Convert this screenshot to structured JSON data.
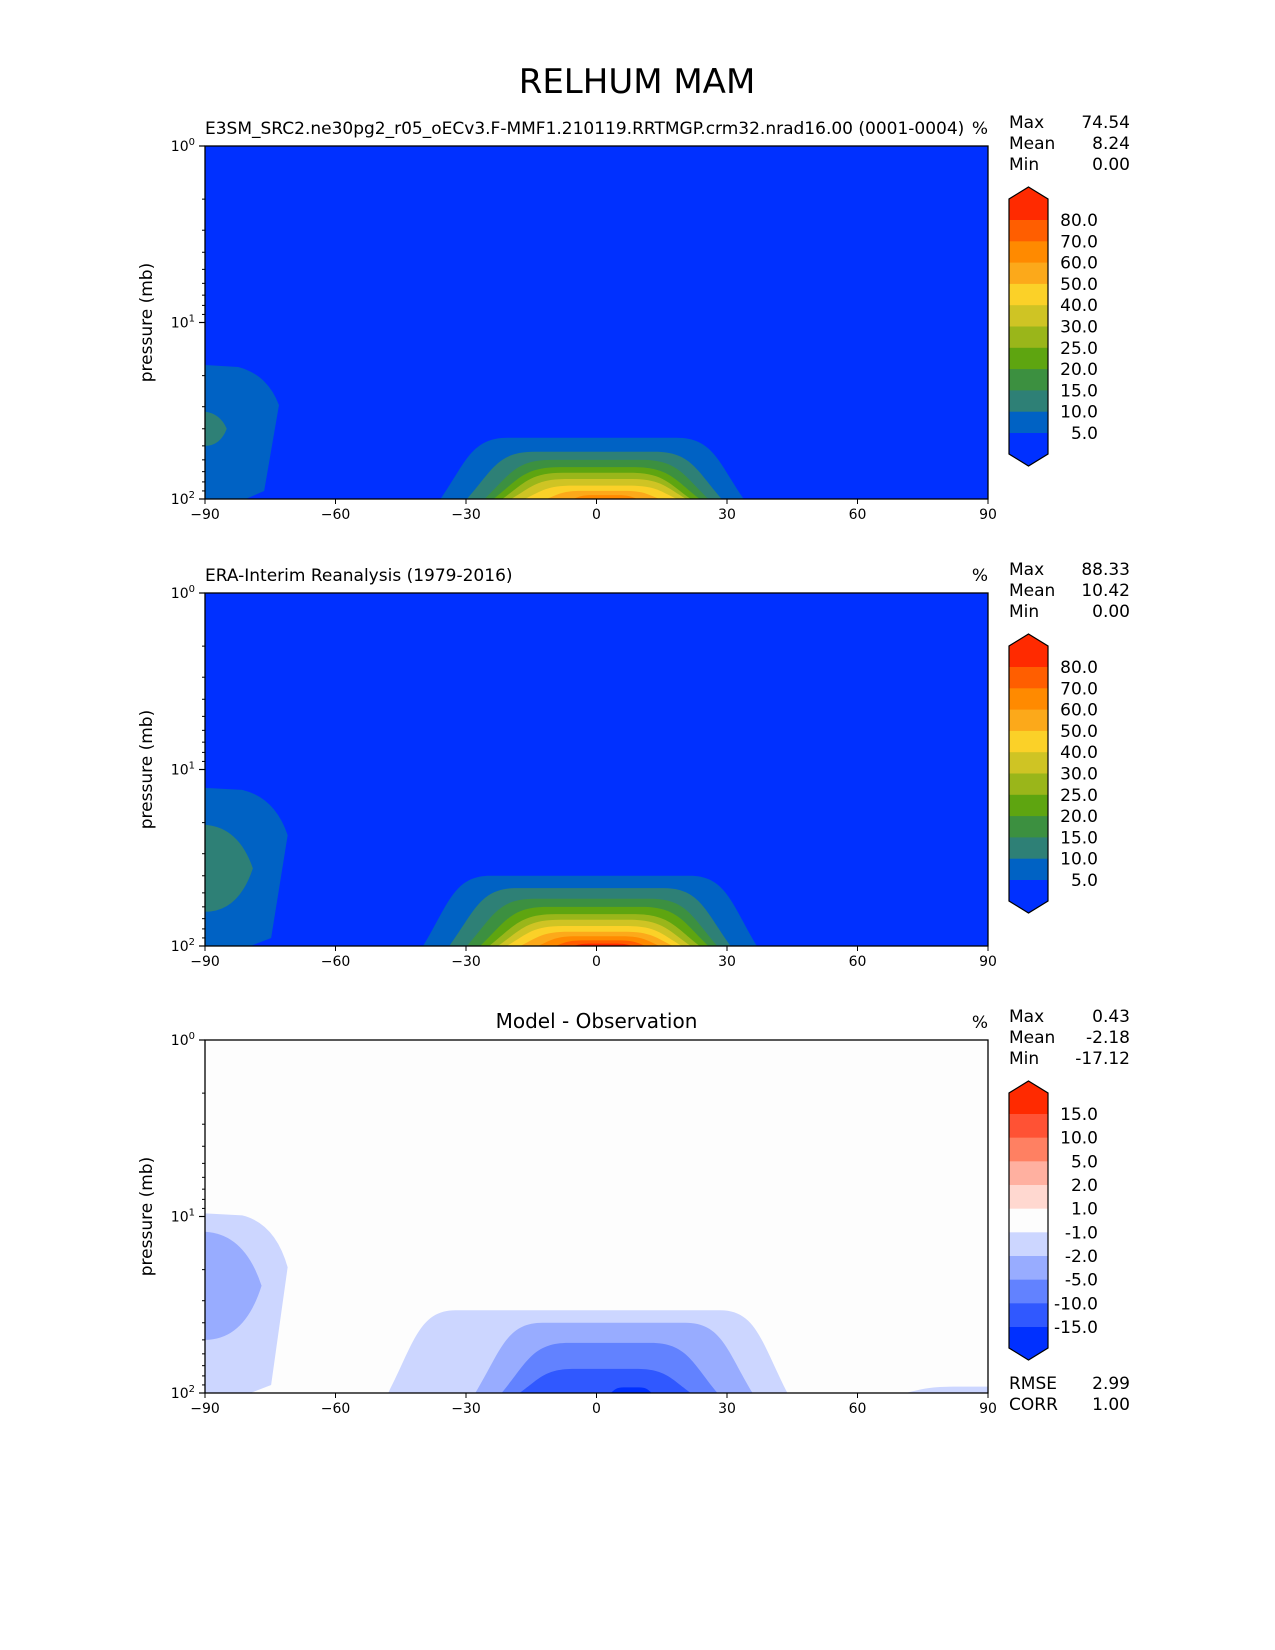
{
  "title": "RELHUM MAM",
  "units": "%",
  "chart_data": [
    {
      "type": "contour",
      "title": "",
      "subtitle": "E3SM_SRC2.ne30pg2_r05_oECv3.F-MMF1.210119.RRTMGP.crm32.nrad16.00 (0001-0004)",
      "units": "%",
      "ylabel": "pressure (mb)",
      "xlim": [
        -90,
        90
      ],
      "ylim": [
        100,
        1
      ],
      "yscale": "log",
      "xticks": [
        "−90",
        "−60",
        "−30",
        "0",
        "30",
        "60",
        "90"
      ],
      "xtick_values": [
        -90,
        -60,
        -30,
        0,
        30,
        60,
        90
      ],
      "yticks": [
        {
          "base": "10",
          "exp": "0",
          "value": 1
        },
        {
          "base": "10",
          "exp": "1",
          "value": 10
        },
        {
          "base": "10",
          "exp": "2",
          "value": 100
        }
      ],
      "stats": [
        {
          "label": "Max",
          "value": "74.54"
        },
        {
          "label": "Mean",
          "value": "8.24"
        },
        {
          "label": "Min",
          "value": "0.00"
        }
      ],
      "levels": [
        5,
        10,
        15,
        20,
        25,
        30,
        40,
        50,
        60,
        70,
        80
      ],
      "level_labels": [
        "5.0",
        "10.0",
        "15.0",
        "20.0",
        "25.0",
        "30.0",
        "40.0",
        "50.0",
        "60.0",
        "70.0",
        "80.0"
      ],
      "colors": [
        "#0030ff",
        "#0062c4",
        "#2e8076",
        "#3c9040",
        "#5ea510",
        "#9ab61a",
        "#cfc424",
        "#fbd128",
        "#fca91a",
        "#ff8a00",
        "#ff5e00",
        "#ff2a00"
      ],
      "regions": [
        {
          "band": 1,
          "lat": [
            -90,
            -73
          ],
          "ptop": 17.4,
          "shape": "polar"
        },
        {
          "band": 2,
          "lat": [
            -90,
            -85
          ],
          "ptop": 32,
          "pbot": 50,
          "shape": "polar-blob"
        },
        {
          "band": 1,
          "lat": [
            -36,
            34
          ],
          "ptop": 45
        },
        {
          "band": 2,
          "lat": [
            -30,
            29
          ],
          "ptop": 54
        },
        {
          "band": 3,
          "lat": [
            -26,
            26
          ],
          "ptop": 60
        },
        {
          "band": 4,
          "lat": [
            -24,
            24
          ],
          "ptop": 66
        },
        {
          "band": 5,
          "lat": [
            -22,
            22
          ],
          "ptop": 71
        },
        {
          "band": 6,
          "lat": [
            -20,
            21
          ],
          "ptop": 77
        },
        {
          "band": 7,
          "lat": [
            -17,
            19
          ],
          "ptop": 84
        },
        {
          "band": 8,
          "lat": [
            -12,
            15
          ],
          "ptop": 90
        },
        {
          "band": 9,
          "lat": [
            -6,
            10
          ],
          "ptop": 95
        }
      ]
    },
    {
      "type": "contour",
      "title": "",
      "subtitle": "ERA-Interim Reanalysis (1979-2016)",
      "units": "%",
      "ylabel": "pressure (mb)",
      "xlim": [
        -90,
        90
      ],
      "ylim": [
        100,
        1
      ],
      "yscale": "log",
      "xticks": [
        "−90",
        "−60",
        "−30",
        "0",
        "30",
        "60",
        "90"
      ],
      "xtick_values": [
        -90,
        -60,
        -30,
        0,
        30,
        60,
        90
      ],
      "yticks": [
        {
          "base": "10",
          "exp": "0",
          "value": 1
        },
        {
          "base": "10",
          "exp": "1",
          "value": 10
        },
        {
          "base": "10",
          "exp": "2",
          "value": 100
        }
      ],
      "stats": [
        {
          "label": "Max",
          "value": "88.33"
        },
        {
          "label": "Mean",
          "value": "10.42"
        },
        {
          "label": "Min",
          "value": "0.00"
        }
      ],
      "levels": [
        5,
        10,
        15,
        20,
        25,
        30,
        40,
        50,
        60,
        70,
        80
      ],
      "level_labels": [
        "5.0",
        "10.0",
        "15.0",
        "20.0",
        "25.0",
        "30.0",
        "40.0",
        "50.0",
        "60.0",
        "70.0",
        "80.0"
      ],
      "colors": [
        "#0030ff",
        "#0062c4",
        "#2e8076",
        "#3c9040",
        "#5ea510",
        "#9ab61a",
        "#cfc424",
        "#fbd128",
        "#fca91a",
        "#ff8a00",
        "#ff5e00",
        "#ff2a00"
      ],
      "regions": [
        {
          "band": 1,
          "lat": [
            -90,
            -71
          ],
          "ptop": 12.7,
          "shape": "polar"
        },
        {
          "band": 2,
          "lat": [
            -90,
            -79
          ],
          "ptop": 20.6,
          "pbot": 64,
          "shape": "polar-blob"
        },
        {
          "band": 1,
          "lat": [
            -40,
            37
          ],
          "ptop": 40
        },
        {
          "band": 2,
          "lat": [
            -34,
            31
          ],
          "ptop": 47
        },
        {
          "band": 3,
          "lat": [
            -30,
            28
          ],
          "ptop": 54
        },
        {
          "band": 4,
          "lat": [
            -27,
            26
          ],
          "ptop": 60
        },
        {
          "band": 5,
          "lat": [
            -25,
            24
          ],
          "ptop": 66
        },
        {
          "band": 6,
          "lat": [
            -23,
            22
          ],
          "ptop": 71
        },
        {
          "band": 7,
          "lat": [
            -21,
            20
          ],
          "ptop": 77
        },
        {
          "band": 8,
          "lat": [
            -18,
            18
          ],
          "ptop": 83
        },
        {
          "band": 9,
          "lat": [
            -14,
            15
          ],
          "ptop": 88
        },
        {
          "band": 10,
          "lat": [
            -10,
            12
          ],
          "ptop": 93
        },
        {
          "band": 11,
          "lat": [
            -6,
            9
          ],
          "ptop": 97
        }
      ]
    },
    {
      "type": "contour",
      "title": "Model - Observation",
      "subtitle": "",
      "units": "%",
      "ylabel": "pressure (mb)",
      "xlim": [
        -90,
        90
      ],
      "ylim": [
        100,
        1
      ],
      "yscale": "log",
      "xticks": [
        "−90",
        "−60",
        "−30",
        "0",
        "30",
        "60",
        "90"
      ],
      "xtick_values": [
        -90,
        -60,
        -30,
        0,
        30,
        60,
        90
      ],
      "yticks": [
        {
          "base": "10",
          "exp": "0",
          "value": 1
        },
        {
          "base": "10",
          "exp": "1",
          "value": 10
        },
        {
          "base": "10",
          "exp": "2",
          "value": 100
        }
      ],
      "stats": [
        {
          "label": "Max",
          "value": "0.43"
        },
        {
          "label": "Mean",
          "value": "-2.18"
        },
        {
          "label": "Min",
          "value": "-17.12"
        }
      ],
      "extra_stats": [
        {
          "label": "RMSE",
          "value": "2.99"
        },
        {
          "label": "CORR",
          "value": "1.00"
        }
      ],
      "levels": [
        -15,
        -10,
        -5,
        -2,
        -1,
        1,
        2,
        5,
        10,
        15
      ],
      "level_labels": [
        "-15.0",
        "-10.0",
        "-5.0",
        "-2.0",
        "-1.0",
        "1.0",
        "2.0",
        "5.0",
        "10.0",
        "15.0"
      ],
      "colors": [
        "#0030ff",
        "#3058ff",
        "#6282ff",
        "#98acff",
        "#ccd6ff",
        "#fdfdfd",
        "#ffd8d0",
        "#ffb0a0",
        "#ff8062",
        "#ff5234",
        "#ff2a00"
      ],
      "background_band": 5,
      "regions": [
        {
          "band": 4,
          "lat": [
            -90,
            -71
          ],
          "ptop": 9.6,
          "shape": "polar"
        },
        {
          "band": 3,
          "lat": [
            -90,
            -77
          ],
          "ptop": 12.2,
          "pbot": 50,
          "shape": "polar-blob"
        },
        {
          "band": 4,
          "lat": [
            -48,
            44
          ],
          "ptop": 34
        },
        {
          "band": 3,
          "lat": [
            -28,
            36
          ],
          "ptop": 40
        },
        {
          "band": 2,
          "lat": [
            -22,
            28
          ],
          "ptop": 52
        },
        {
          "band": 1,
          "lat": [
            -18,
            22
          ],
          "ptop": 73
        },
        {
          "band": 0,
          "lat": [
            3,
            13
          ],
          "ptop": 93
        },
        {
          "band": 4,
          "lat": [
            70,
            110
          ],
          "ptop": 92
        }
      ]
    }
  ]
}
